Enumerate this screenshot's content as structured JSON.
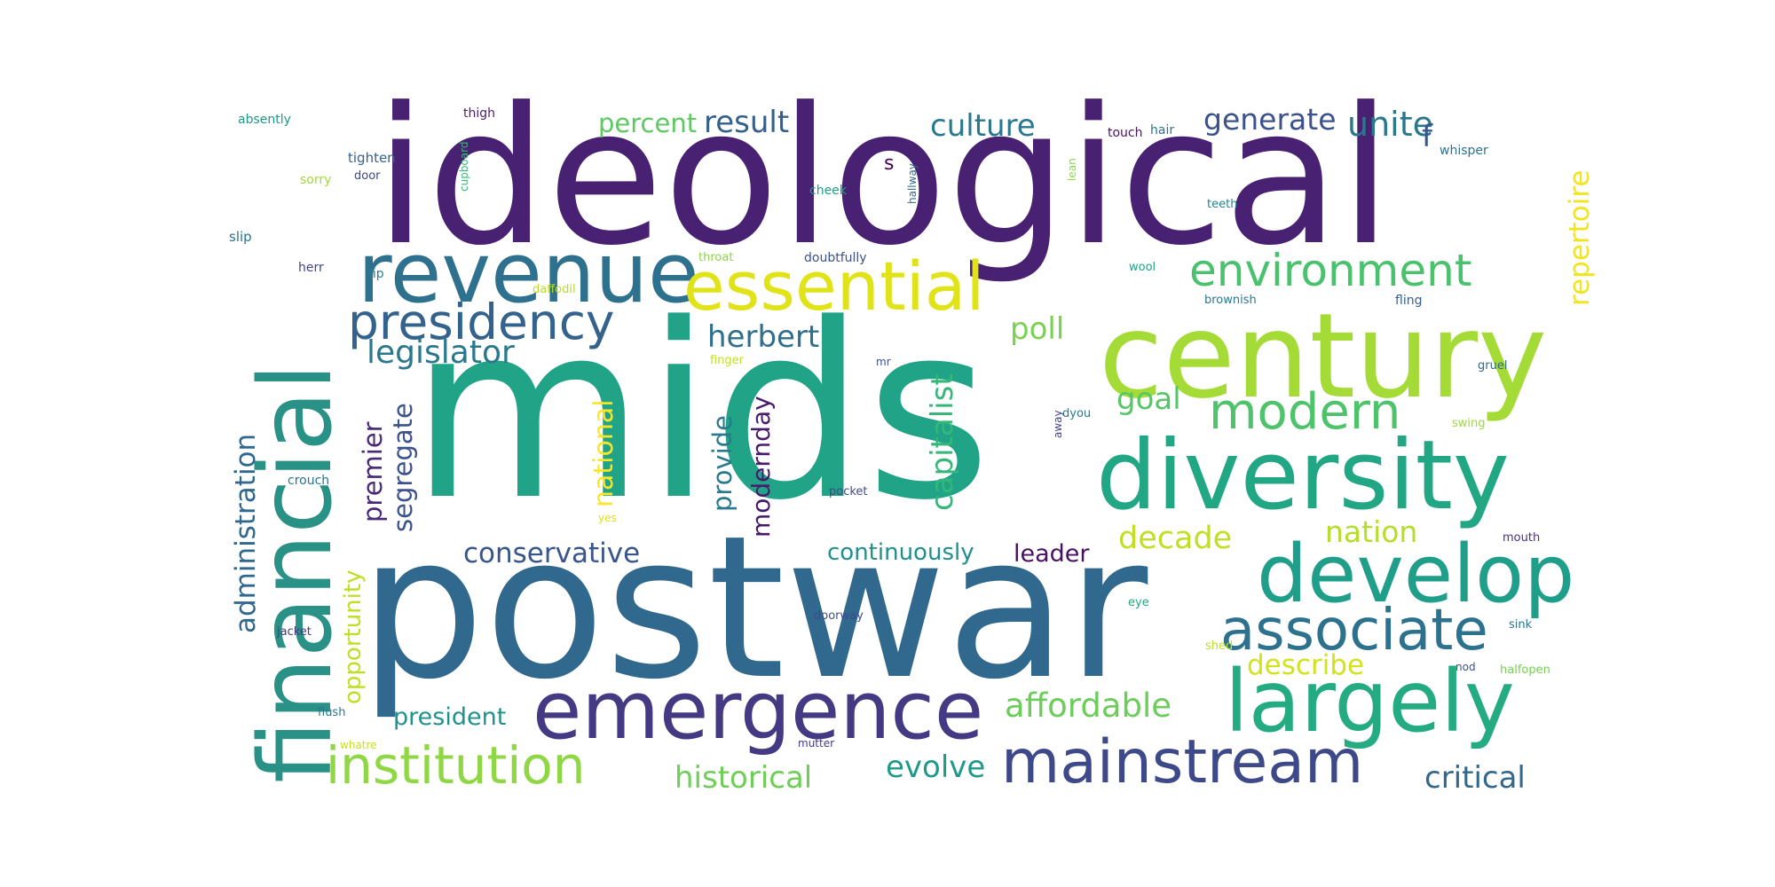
{
  "cloud": {
    "words": [
      {
        "text": "ideological",
        "color": "#482173"
      },
      {
        "text": "mids",
        "color": "#20a386"
      },
      {
        "text": "postwar",
        "color": "#31688e"
      },
      {
        "text": "financial",
        "color": "#2a9187"
      },
      {
        "text": "century",
        "color": "#a5db36"
      },
      {
        "text": "diversity",
        "color": "#22a785"
      },
      {
        "text": "revenue",
        "color": "#2d718e"
      },
      {
        "text": "essential",
        "color": "#dfe318"
      },
      {
        "text": "emergence",
        "color": "#443983"
      },
      {
        "text": "develop",
        "color": "#1f9e89"
      },
      {
        "text": "largely",
        "color": "#25ab82"
      },
      {
        "text": "associate",
        "color": "#2c728e"
      },
      {
        "text": "mainstream",
        "color": "#3e4989"
      },
      {
        "text": "institution",
        "color": "#8fd744"
      },
      {
        "text": "presidency",
        "color": "#33638d"
      },
      {
        "text": "environment",
        "color": "#4ac16d"
      },
      {
        "text": "modern",
        "color": "#4ec36b"
      },
      {
        "text": "herbert",
        "color": "#2e6f8e"
      },
      {
        "text": "legislator",
        "color": "#2a788e"
      },
      {
        "text": "culture",
        "color": "#2a788e"
      },
      {
        "text": "result",
        "color": "#355f8d"
      },
      {
        "text": "percent",
        "color": "#5ec962"
      },
      {
        "text": "generate",
        "color": "#3b528b"
      },
      {
        "text": "unite",
        "color": "#2a788e"
      },
      {
        "text": "poll",
        "color": "#7ad151"
      },
      {
        "text": "goal",
        "color": "#56c667"
      },
      {
        "text": "decade",
        "color": "#c0df25"
      },
      {
        "text": "nation",
        "color": "#b5de2b"
      },
      {
        "text": "conservative",
        "color": "#39568c"
      },
      {
        "text": "continuously",
        "color": "#218f8d"
      },
      {
        "text": "leader",
        "color": "#471063"
      },
      {
        "text": "describe",
        "color": "#d2e21b"
      },
      {
        "text": "affordable",
        "color": "#6ccd5a"
      },
      {
        "text": "president",
        "color": "#20928c"
      },
      {
        "text": "historical",
        "color": "#6ece58"
      },
      {
        "text": "evolve",
        "color": "#1f9a8a"
      },
      {
        "text": "critical",
        "color": "#31688e"
      },
      {
        "text": "f",
        "color": "#39568c"
      },
      {
        "text": "s",
        "color": "#440154"
      },
      {
        "text": "administration",
        "color": "#31688e"
      },
      {
        "text": "premier",
        "color": "#482878"
      },
      {
        "text": "segregate",
        "color": "#3b528b"
      },
      {
        "text": "opportunity",
        "color": "#bddf26"
      },
      {
        "text": "national",
        "color": "#fde725"
      },
      {
        "text": "provide",
        "color": "#2a788e"
      },
      {
        "text": "modernday",
        "color": "#481a6c"
      },
      {
        "text": "capitalist",
        "color": "#35b779"
      },
      {
        "text": "repertoire",
        "color": "#f1e51d"
      },
      {
        "text": "absently",
        "color": "#1f988b"
      },
      {
        "text": "thigh",
        "color": "#481f70"
      },
      {
        "text": "tighten",
        "color": "#34618d"
      },
      {
        "text": "sorry",
        "color": "#a0da39"
      },
      {
        "text": "door",
        "color": "#3f4788"
      },
      {
        "text": "slip",
        "color": "#2c728e"
      },
      {
        "text": "herr",
        "color": "#404688"
      },
      {
        "text": "lip",
        "color": "#26828e"
      },
      {
        "text": "daffodil",
        "color": "#b8de29"
      },
      {
        "text": "throat",
        "color": "#8bd646"
      },
      {
        "text": "doubtfully",
        "color": "#3b528b"
      },
      {
        "text": "cheek",
        "color": "#1f9e89"
      },
      {
        "text": "touch",
        "color": "#481467"
      },
      {
        "text": "hair",
        "color": "#2d708e"
      },
      {
        "text": "whisper",
        "color": "#2c728e"
      },
      {
        "text": "teeth",
        "color": "#26828e"
      },
      {
        "text": "wool",
        "color": "#1fa088"
      },
      {
        "text": "brownish",
        "color": "#2a788e"
      },
      {
        "text": "fling",
        "color": "#355f8d"
      },
      {
        "text": "gruel",
        "color": "#31688e"
      },
      {
        "text": "finger",
        "color": "#c2df23"
      },
      {
        "text": "mr",
        "color": "#3b528b"
      },
      {
        "text": "dyou",
        "color": "#2a788e"
      },
      {
        "text": "swing",
        "color": "#9bd93c"
      },
      {
        "text": "crouch",
        "color": "#2c728e"
      },
      {
        "text": "yes",
        "color": "#dde318"
      },
      {
        "text": "pocket",
        "color": "#3e4989"
      },
      {
        "text": "mouth",
        "color": "#46327e"
      },
      {
        "text": "jacket",
        "color": "#453882"
      },
      {
        "text": "doorway",
        "color": "#3d4d8a"
      },
      {
        "text": "eye",
        "color": "#22a884"
      },
      {
        "text": "shed",
        "color": "#bade28"
      },
      {
        "text": "sink",
        "color": "#2a788e"
      },
      {
        "text": "nod",
        "color": "#3b528b"
      },
      {
        "text": "halfopen",
        "color": "#75d054"
      },
      {
        "text": "flush",
        "color": "#2a788e"
      },
      {
        "text": "whatre",
        "color": "#c8e020"
      },
      {
        "text": "mutter",
        "color": "#443a83"
      },
      {
        "text": "cupboard",
        "color": "#3aba76"
      },
      {
        "text": "hallway",
        "color": "#31688e"
      },
      {
        "text": "lean",
        "color": "#8ed645"
      },
      {
        "text": "away",
        "color": "#414487"
      }
    ]
  }
}
